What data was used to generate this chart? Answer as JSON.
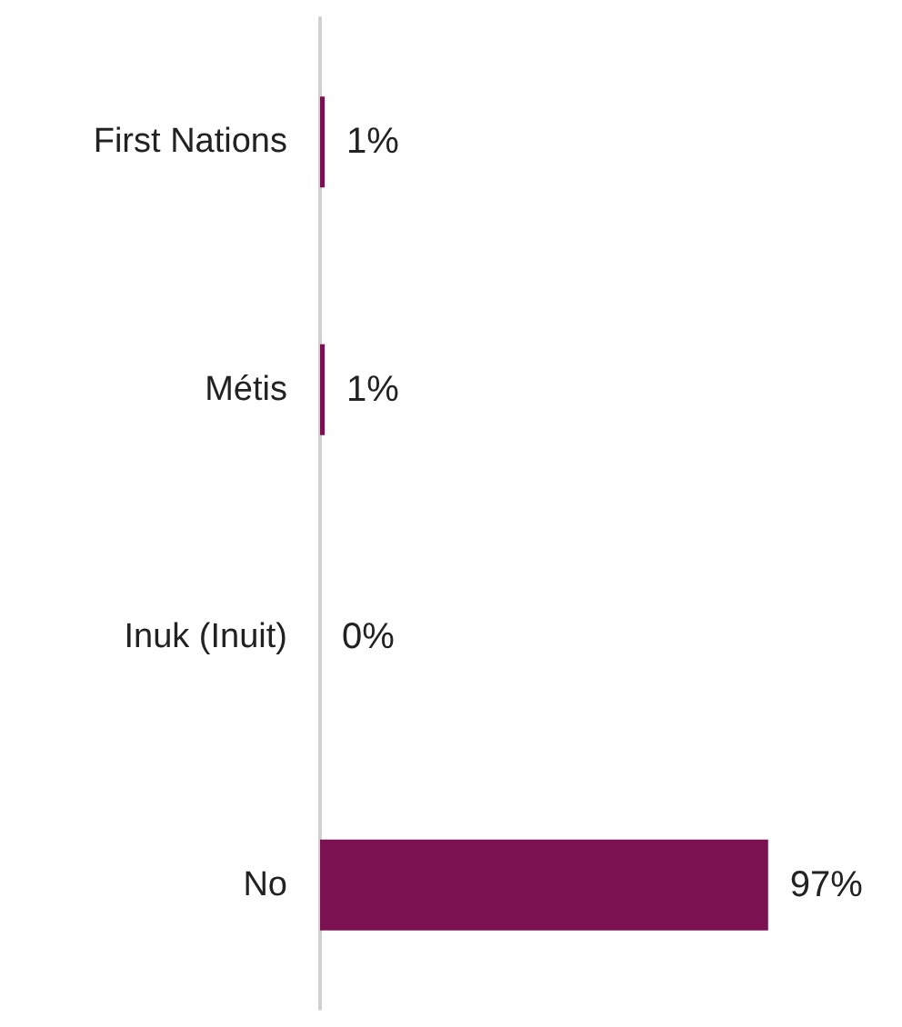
{
  "chart_data": {
    "type": "bar",
    "orientation": "horizontal",
    "categories": [
      "First Nations",
      "Métis",
      "Inuk (Inuit)",
      "No"
    ],
    "values": [
      1,
      1,
      0,
      97
    ],
    "color": "#7b1150",
    "value_labels": [
      "1%",
      "1%",
      "0%",
      "97%"
    ]
  }
}
